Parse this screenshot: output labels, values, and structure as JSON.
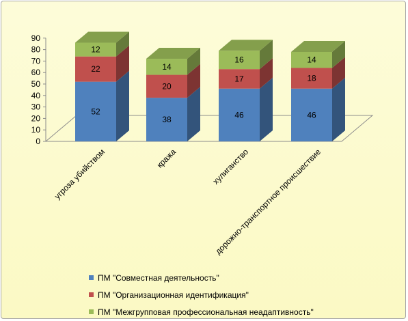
{
  "chart_data": {
    "type": "bar",
    "stacked": true,
    "three_d": true,
    "categories": [
      "угроза убийством",
      "кража",
      "хулиганство",
      "дорожно-транспортное происшествие"
    ],
    "series": [
      {
        "name": "ПМ \"Совместная деятельность\"",
        "values": [
          52,
          38,
          46,
          46
        ],
        "color": "#4f81bd"
      },
      {
        "name": "ПМ  \"Организационная идентификация\"",
        "values": [
          22,
          20,
          17,
          18
        ],
        "color": "#c0504d"
      },
      {
        "name": "ПМ \"Межгрупповая профессиональная неадаптивность\"",
        "values": [
          12,
          14,
          16,
          14
        ],
        "color": "#9bbb59"
      }
    ],
    "y_ticks": [
      "0",
      "10",
      "20",
      "30",
      "40",
      "50",
      "60",
      "70",
      "80",
      "90"
    ],
    "ylim": [
      0,
      90
    ],
    "title": "",
    "xlabel": "",
    "ylabel": "",
    "legend_position": "bottom",
    "background_color": "#fcfbd0"
  }
}
